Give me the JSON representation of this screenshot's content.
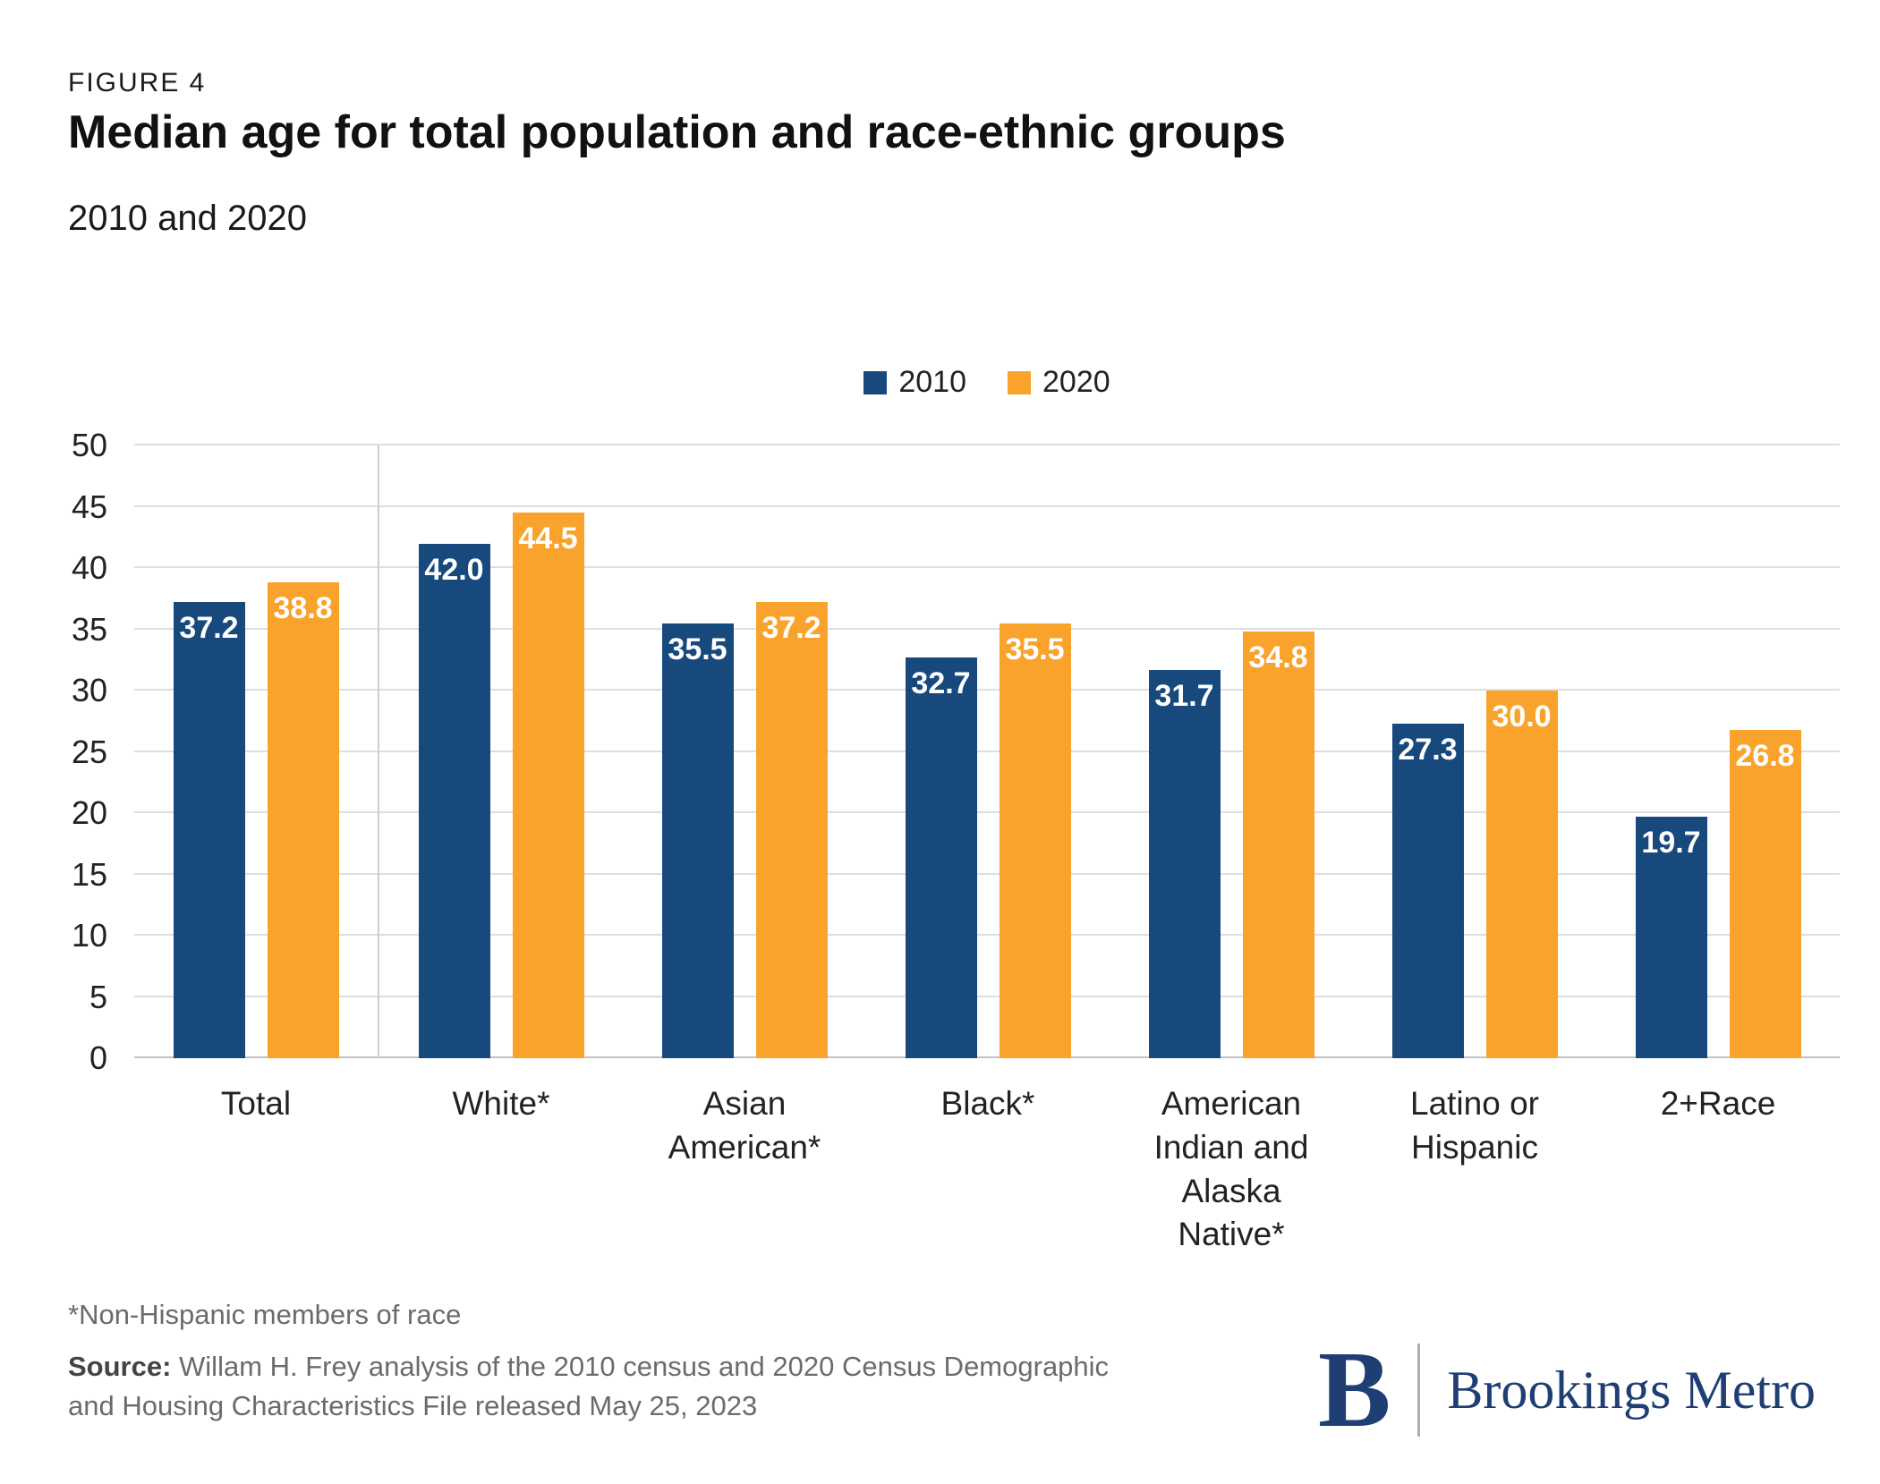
{
  "figure": {
    "label": "FIGURE 4",
    "title": "Median age for total population and race-ethnic groups",
    "subtitle": "2010 and 2020"
  },
  "chart_data": {
    "type": "bar",
    "categories": [
      "Total",
      "White*",
      "Asian American*",
      "Black*",
      "American Indian and Alaska Native*",
      "Latino or Hispanic",
      "2+Race"
    ],
    "series": [
      {
        "name": "2010",
        "color": "#17497D",
        "values": [
          37.2,
          42.0,
          35.5,
          32.7,
          31.7,
          27.3,
          19.7
        ]
      },
      {
        "name": "2020",
        "color": "#F9A32C",
        "values": [
          38.8,
          44.5,
          37.2,
          35.5,
          34.8,
          30.0,
          26.8
        ]
      }
    ],
    "ylim": [
      0,
      50
    ],
    "ytick_step": 5,
    "grid": true,
    "legend_position": "top-center",
    "separator_after_category": "Total",
    "value_label_decimals": 1
  },
  "footnote": "*Non-Hispanic members of race",
  "source": {
    "label": "Source:",
    "text": " Willam H. Frey analysis of the 2010 census and 2020 Census Demographic and Housing Characteristics File released May 25, 2023"
  },
  "logo": {
    "monogram": "B",
    "wordmark": "Brookings Metro"
  }
}
